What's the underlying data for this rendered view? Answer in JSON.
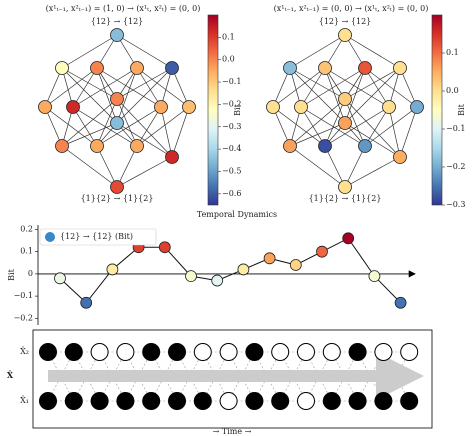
{
  "chart_data": [
    {
      "type": "network",
      "title": "(x¹ₜ₋₁, x²ₜ₋₁) = (1, 0) → (x¹ₜ, x²ₜ) = (0, 0)",
      "top_label": "{12} → {12}",
      "bottom_label": "{1}{2} → {1}{2}",
      "colorbar_label": "Bit",
      "colormap": [
        "#313695",
        "#4575b4",
        "#74add1",
        "#abd9e9",
        "#e0f3f8",
        "#ffffbf",
        "#fee090",
        "#fdae61",
        "#f46d43",
        "#d73027",
        "#a50026"
      ],
      "vlim": [
        -0.65,
        0.2
      ],
      "cticks": [
        0.1,
        {
          "value": 0,
          "label": "0.0"
        },
        {
          "value": -0.1,
          "label": "−0.1"
        },
        {
          "value": -0.2,
          "label": "−0.2"
        },
        {
          "value": -0.3,
          "label": "−0.3"
        },
        {
          "value": -0.4,
          "label": "−0.4"
        },
        {
          "value": -0.5,
          "label": "−0.5"
        },
        {
          "value": -0.6,
          "label": "−0.6"
        }
      ],
      "values": [
        -0.45,
        -0.22,
        0.0,
        -0.05,
        -0.6,
        -0.05,
        0.13,
        0.0,
        -0.45,
        -0.05,
        -0.08,
        0.0,
        -0.05,
        -0.05,
        0.13,
        0.08
      ]
    },
    {
      "type": "network",
      "title": "(x¹ₜ₋₁, x²ₜ₋₁) = (0, 0) → (x¹ₜ, x²ₜ) = (0, 0)",
      "top_label": "{12} → {12}",
      "bottom_label": "{1}{2} → {1}{2}",
      "colorbar_label": "Bit",
      "colormap": [
        "#313695",
        "#4575b4",
        "#74add1",
        "#abd9e9",
        "#e0f3f8",
        "#ffffbf",
        "#fee090",
        "#fdae61",
        "#f46d43",
        "#d73027",
        "#a50026"
      ],
      "vlim": [
        -0.3,
        0.2
      ],
      "cticks": [
        0.1,
        {
          "value": 0,
          "label": "0.0"
        },
        {
          "value": -0.1,
          "label": "−0.1"
        },
        {
          "value": -0.2,
          "label": "−0.2"
        },
        {
          "value": -0.3,
          "label": "−0.3"
        }
      ],
      "values": [
        0.0,
        -0.18,
        0.03,
        0.12,
        0.0,
        0.0,
        0.0,
        0.02,
        0.06,
        0.0,
        -0.2,
        0.06,
        -0.28,
        -0.22,
        0.05,
        0.0
      ]
    },
    {
      "type": "line",
      "title": "Temporal Dynamics",
      "y_label": "Bit",
      "series": [
        {
          "name": "{12} → {12} (Bit)",
          "color": "#3a86c8",
          "values": [
            -0.02,
            -0.13,
            0.02,
            0.12,
            0.12,
            -0.01,
            -0.03,
            0.02,
            0.07,
            0.04,
            0.1,
            0.16,
            -0.01,
            -0.13
          ]
        }
      ],
      "colormap": [
        "#313695",
        "#4575b4",
        "#74add1",
        "#abd9e9",
        "#e0f3f8",
        "#ffffbf",
        "#fee090",
        "#fdae61",
        "#f46d43",
        "#d73027",
        "#a50026"
      ],
      "vlim": [
        -0.16,
        0.16
      ],
      "ylim": [
        -0.23,
        0.22
      ],
      "yticks": [
        0.2,
        0.1,
        0,
        {
          "value": -0.1,
          "label": "−0.1"
        },
        {
          "value": -0.2,
          "label": "−0.2"
        }
      ]
    },
    {
      "type": "raster",
      "y_label": "X̂",
      "x_label": "→ Time →",
      "rows": [
        {
          "name": "X̂₂",
          "values": [
            1,
            1,
            0,
            0,
            1,
            1,
            0,
            0,
            1,
            0,
            0,
            0,
            1,
            0,
            0
          ]
        },
        {
          "name": "X̂₁",
          "values": [
            1,
            1,
            1,
            1,
            1,
            1,
            1,
            0,
            1,
            1,
            0,
            1,
            1,
            1,
            1
          ]
        }
      ]
    }
  ]
}
